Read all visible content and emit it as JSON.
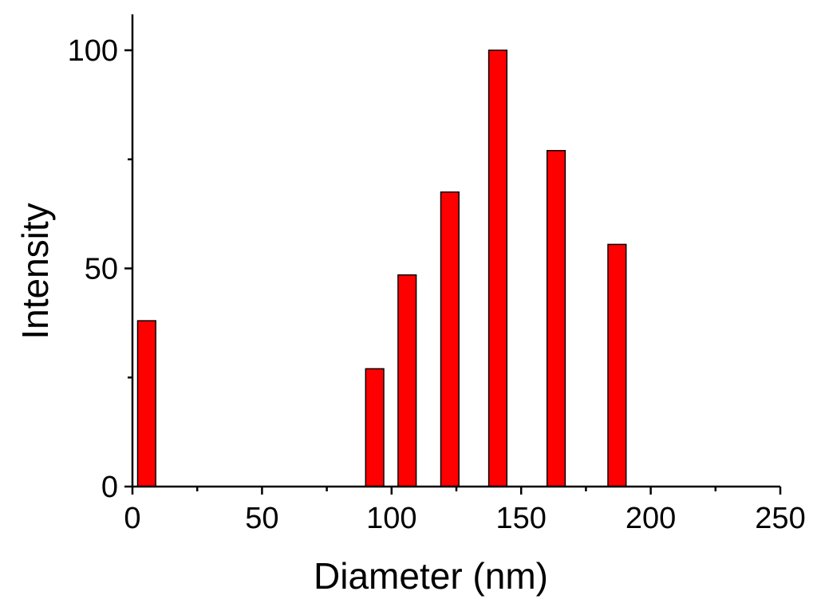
{
  "chart_data": {
    "type": "bar",
    "title": "",
    "xlabel": "Diameter (nm)",
    "ylabel": "Intensity",
    "xlim": [
      0,
      250
    ],
    "ylim": [
      0,
      100
    ],
    "x_ticks": [
      0,
      50,
      100,
      150,
      200,
      250
    ],
    "x_minor_ticks": [
      25,
      75,
      125,
      175,
      225
    ],
    "y_ticks": [
      0,
      50,
      100
    ],
    "y_minor_ticks": [
      25,
      75
    ],
    "grid": false,
    "legend": "none",
    "bar_color": "#ff0000",
    "bar_width": 7,
    "bars": [
      {
        "x": 5.5,
        "value": 38
      },
      {
        "x": 93.5,
        "value": 27
      },
      {
        "x": 106,
        "value": 48.5
      },
      {
        "x": 122.5,
        "value": 67.5
      },
      {
        "x": 141,
        "value": 100
      },
      {
        "x": 163.5,
        "value": 77
      },
      {
        "x": 187,
        "value": 55.5
      }
    ]
  }
}
